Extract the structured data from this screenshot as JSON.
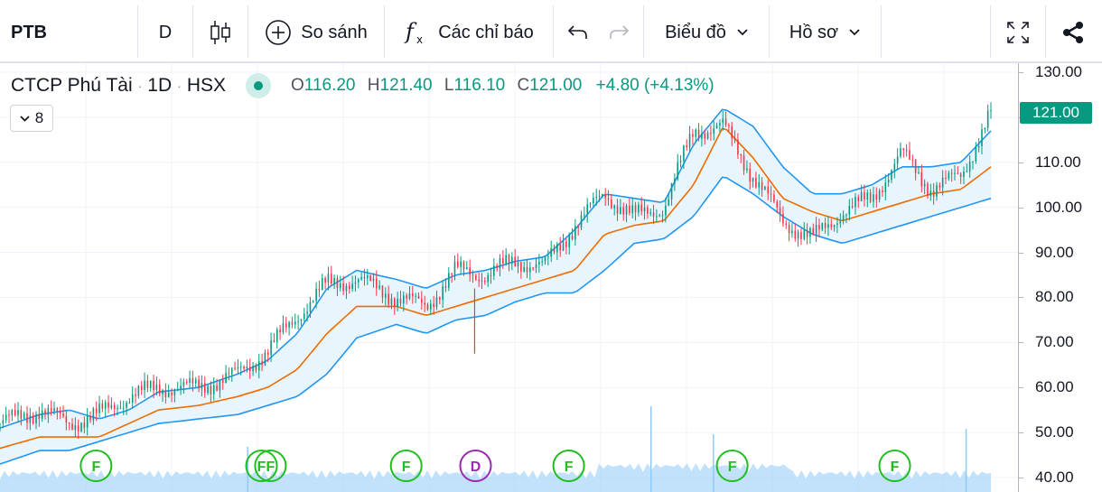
{
  "toolbar": {
    "symbol": "PTB",
    "interval": "D",
    "compare_label": "So sánh",
    "indicators_label": "Các chỉ báo",
    "chart_type_label": "Biểu đồ",
    "profile_label": "Hồ sơ"
  },
  "legend": {
    "name": "CTCP Phú Tài",
    "timeframe": "1D",
    "exchange": "HSX",
    "open_key": "O",
    "open": "116.20",
    "high_key": "H",
    "high": "121.40",
    "low_key": "L",
    "low": "116.10",
    "close_key": "C",
    "close": "121.00",
    "change": "+4.80 (+4.13%)"
  },
  "indicator_count": "8",
  "price_scale": {
    "ticks": [
      "130.00",
      "120.00",
      "110.00",
      "100.00",
      "90.00",
      "80.00",
      "70.00",
      "60.00",
      "50.00",
      "40.00"
    ],
    "last_price": "121.00"
  },
  "colors": {
    "up": "#089981",
    "down": "#f23645",
    "band": "#2196f3",
    "band_fill": "#e3f2fd",
    "ma": "#ef6c00",
    "volume": "#90caf9",
    "event_f": "#1fbf1f",
    "event_d": "#9c27b0"
  },
  "events": [
    {
      "label": "F",
      "type": "F",
      "x_pos": 0.086
    },
    {
      "label": "F",
      "type": "F",
      "x_pos": 0.253
    },
    {
      "label": "F",
      "type": "F",
      "x_pos": 0.262
    },
    {
      "label": "F",
      "type": "F",
      "x_pos": 0.399
    },
    {
      "label": "D",
      "type": "D",
      "x_pos": 0.469
    },
    {
      "label": "F",
      "type": "F",
      "x_pos": 0.563
    },
    {
      "label": "F",
      "type": "F",
      "x_pos": 0.728
    },
    {
      "label": "F",
      "type": "F",
      "x_pos": 0.892
    }
  ],
  "chart_data": {
    "type": "line",
    "title": "",
    "xlabel": "",
    "ylabel": "",
    "ylim": [
      38,
      133
    ],
    "last_close": 121.0,
    "series": [
      {
        "name": "",
        "x_pos": [
          0.0,
          0.04,
          0.07,
          0.1,
          0.13,
          0.16,
          0.2,
          0.24,
          0.27,
          0.3,
          0.33,
          0.36,
          0.4,
          0.43,
          0.46,
          0.49,
          0.52,
          0.55,
          0.58,
          0.61,
          0.64,
          0.67,
          0.7,
          0.73,
          0.76,
          0.79,
          0.82,
          0.85,
          0.88,
          0.91,
          0.94,
          0.97,
          1.0
        ],
        "values": [
          52,
          55,
          52,
          54,
          58,
          60,
          60,
          63,
          68,
          76,
          83,
          84,
          80,
          78,
          86,
          85,
          88,
          87,
          96,
          103,
          98,
          100,
          117,
          118,
          107,
          97,
          93,
          99,
          102,
          112,
          104,
          107,
          121
        ]
      },
      {
        "name": "",
        "x_pos": [
          0.0,
          0.04,
          0.07,
          0.1,
          0.13,
          0.16,
          0.2,
          0.24,
          0.27,
          0.3,
          0.33,
          0.36,
          0.4,
          0.43,
          0.46,
          0.49,
          0.52,
          0.55,
          0.58,
          0.61,
          0.64,
          0.67,
          0.7,
          0.73,
          0.76,
          0.79,
          0.82,
          0.85,
          0.88,
          0.91,
          0.94,
          0.97,
          1.0
        ],
        "values": [
          46.5,
          49,
          49,
          49,
          52,
          55,
          56,
          58,
          60,
          64,
          72,
          78,
          78,
          76,
          78,
          80,
          82,
          84,
          86,
          94,
          96,
          97,
          105,
          118,
          111,
          102,
          99,
          97,
          99,
          101,
          103,
          104,
          109
        ]
      },
      {
        "name": "",
        "x_pos": [
          0.0,
          0.04,
          0.07,
          0.1,
          0.13,
          0.16,
          0.2,
          0.24,
          0.27,
          0.3,
          0.33,
          0.36,
          0.4,
          0.43,
          0.46,
          0.49,
          0.52,
          0.55,
          0.58,
          0.61,
          0.64,
          0.67,
          0.7,
          0.73,
          0.76,
          0.79,
          0.82,
          0.85,
          0.88,
          0.91,
          0.94,
          0.97,
          1.0
        ],
        "values": [
          51,
          54,
          55,
          53,
          55,
          59,
          60,
          63,
          66,
          72,
          82,
          86,
          84,
          82,
          85,
          86,
          88,
          89,
          95,
          103,
          102,
          101,
          114,
          122,
          118,
          109,
          103,
          103,
          105,
          109,
          109,
          110,
          117
        ]
      },
      {
        "name": "",
        "x_pos": [
          0.0,
          0.04,
          0.07,
          0.1,
          0.13,
          0.16,
          0.2,
          0.24,
          0.27,
          0.3,
          0.33,
          0.36,
          0.4,
          0.43,
          0.46,
          0.49,
          0.52,
          0.55,
          0.58,
          0.61,
          0.64,
          0.67,
          0.7,
          0.73,
          0.76,
          0.79,
          0.82,
          0.85,
          0.88,
          0.91,
          0.94,
          0.97,
          1.0
        ],
        "values": [
          43,
          46,
          46,
          48,
          50,
          52,
          53,
          54,
          56,
          58,
          63,
          71,
          74,
          72,
          75,
          76,
          79,
          81,
          81,
          86,
          92,
          93,
          98,
          107,
          103,
          98,
          94,
          92,
          94,
          96,
          98,
          100,
          102
        ]
      }
    ]
  }
}
